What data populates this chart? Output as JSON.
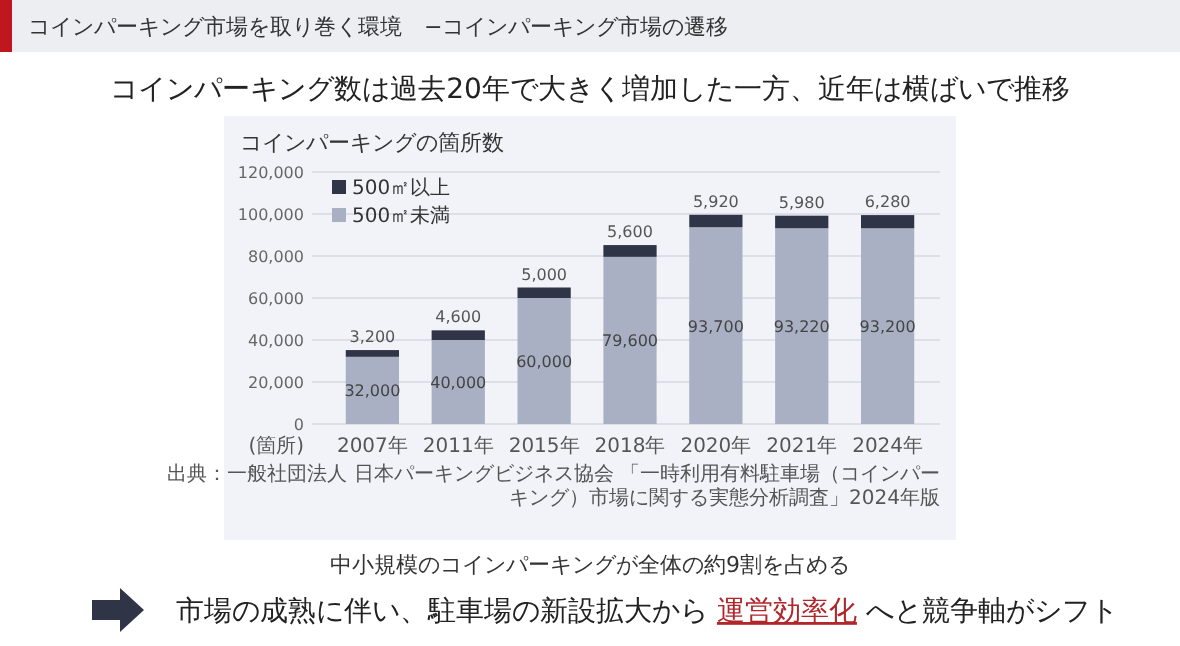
{
  "chart_data": {
    "type": "bar",
    "title": "コインパーキングの箇所数",
    "subtitle": "コインパーキング数は過去20年で大きく増加した一方、近年は横ばいで推移",
    "ylabel": "(箇所)",
    "annotations": [
      "コインパーキング市場を取り巻く環境　−コインパーキング市場の遷移",
      "出典：一般社団法人 日本パーキングビジネス協会 「一時利用有料駐車場（コインパーキング）市場に関する実態分析調査」2024年版",
      "中小規模のコインパーキングが全体の約9割を占める",
      "市場の成熟に伴い、駐車場の新設拡大から ",
      "運営効率化",
      " へと競争軸がシフト"
    ],
    "categories": [
      "2007年",
      "2011年",
      "2015年",
      "2018年",
      "2020年",
      "2021年",
      "2024年"
    ],
    "series": [
      {
        "name": "500㎡未満",
        "color": "#a9b0c3",
        "values": [
          32000,
          40000,
          60000,
          79600,
          93700,
          93220,
          93200
        ],
        "value_labels": [
          "32,000",
          "40,000",
          "60,000",
          "79,600",
          "93,700",
          "93,220",
          "93,200"
        ]
      },
      {
        "name": "500㎡以上",
        "color": "#2f3547",
        "values": [
          3200,
          4600,
          5000,
          5600,
          5920,
          5980,
          6280
        ],
        "value_labels": [
          "3,200",
          "4,600",
          "5,000",
          "5,600",
          "5,920",
          "5,980",
          "6,280"
        ]
      }
    ],
    "stacked": true,
    "ylim": [
      0,
      120000
    ],
    "yticks": [
      0,
      {
        "value": 20000,
        "label": "20,000"
      },
      {
        "value": 40000,
        "label": "40,000"
      },
      {
        "value": 60000,
        "label": "60,000"
      },
      {
        "value": 80000,
        "label": "80,000"
      },
      {
        "value": 100000,
        "label": "100,000"
      },
      {
        "value": 120000,
        "label": "120,000"
      }
    ],
    "grid": "y",
    "legend": "top left"
  }
}
